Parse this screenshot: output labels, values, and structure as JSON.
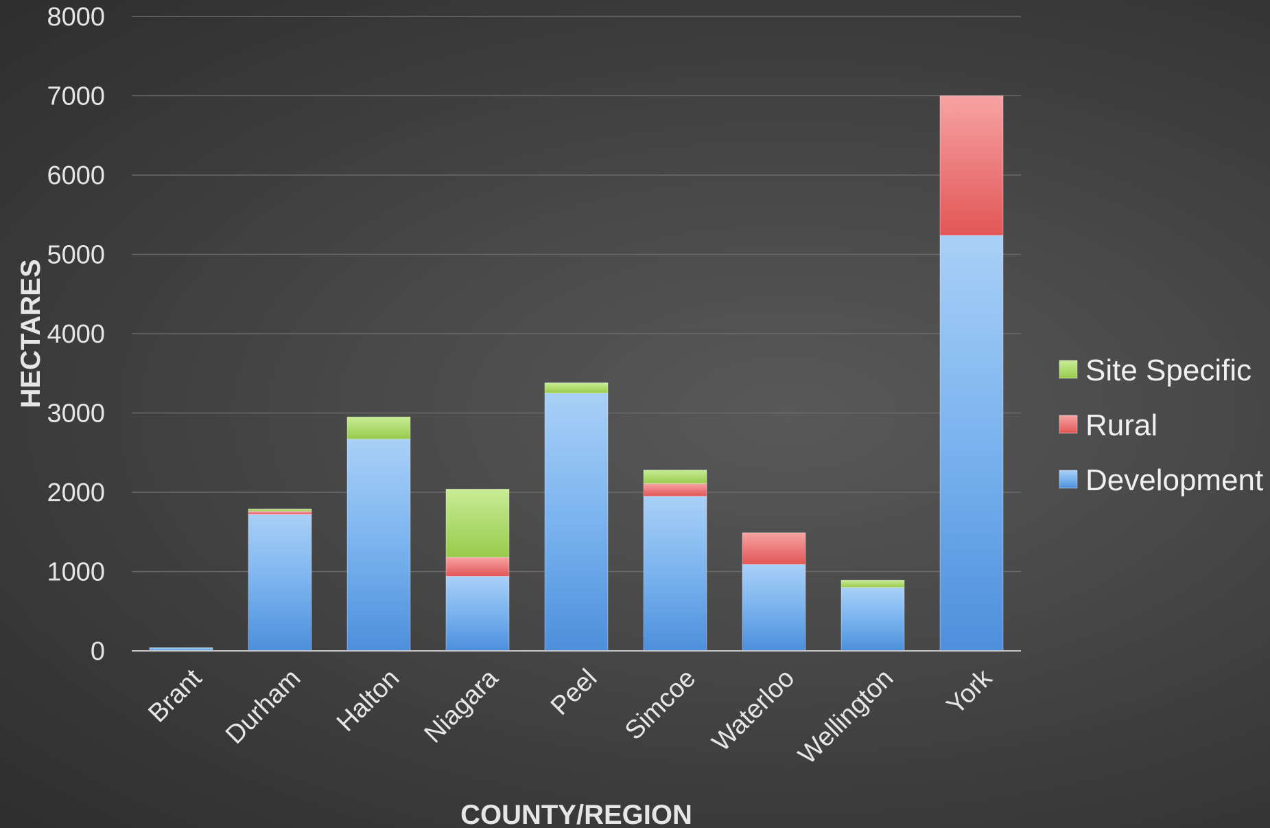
{
  "chart_data": {
    "type": "bar",
    "stacked": true,
    "title": "",
    "xlabel": "COUNTY/REGION",
    "ylabel": "HECTARES",
    "ylim": [
      0,
      8000
    ],
    "yticks": [
      "0",
      "1000",
      "2000",
      "3000",
      "4000",
      "5000",
      "6000",
      "7000",
      "8000"
    ],
    "grid": true,
    "legend_position": "right",
    "categories": [
      "Brant",
      "Durham",
      "Halton",
      "Niagara",
      "Peel",
      "Simcoe",
      "Waterloo",
      "Wellington",
      "York"
    ],
    "series": [
      {
        "name": "Development",
        "color": "#5b9be0",
        "values": [
          40,
          1720,
          2670,
          940,
          3250,
          1950,
          1090,
          800,
          5240
        ]
      },
      {
        "name": "Rural",
        "color": "#e85a5a",
        "values": [
          0,
          40,
          0,
          240,
          0,
          160,
          400,
          0,
          1760
        ]
      },
      {
        "name": "Site Specific",
        "color": "#a6d45a",
        "values": [
          0,
          30,
          280,
          860,
          130,
          170,
          0,
          90,
          0
        ]
      }
    ],
    "legend_order": [
      "Site Specific",
      "Rural",
      "Development"
    ]
  }
}
